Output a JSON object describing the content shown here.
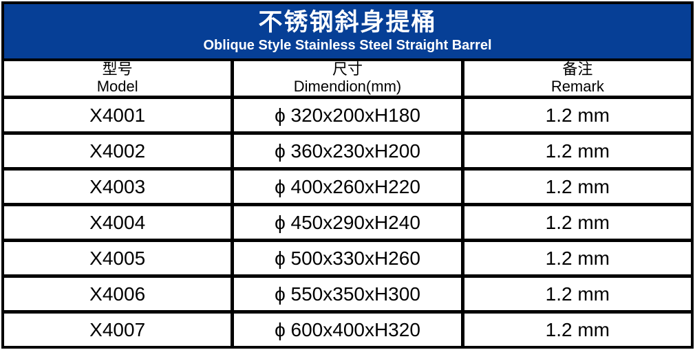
{
  "banner": {
    "title_zh": "不锈钢斜身提桶",
    "title_en": "Oblique Style Stainless Steel Straight Barrel",
    "bg_color": "#063F96",
    "text_color": "#FFFFFF"
  },
  "table": {
    "columns": [
      {
        "label_zh": "型号",
        "label_en": "Model"
      },
      {
        "label_zh": "尺寸",
        "label_en": "Dimendion(mm)"
      },
      {
        "label_zh": "备注",
        "label_en": "Remark"
      }
    ],
    "rows": [
      {
        "model": "X4001",
        "dimension": "ϕ 320x200xH180",
        "remark": "1.2 mm"
      },
      {
        "model": "X4002",
        "dimension": "ϕ 360x230xH200",
        "remark": "1.2 mm"
      },
      {
        "model": "X4003",
        "dimension": "ϕ 400x260xH220",
        "remark": "1.2 mm"
      },
      {
        "model": "X4004",
        "dimension": "ϕ 450x290xH240",
        "remark": "1.2 mm"
      },
      {
        "model": "X4005",
        "dimension": "ϕ 500x330xH260",
        "remark": "1.2 mm"
      },
      {
        "model": "X4006",
        "dimension": "ϕ 550x350xH300",
        "remark": "1.2 mm"
      },
      {
        "model": "X4007",
        "dimension": "ϕ 600x400xH320",
        "remark": "1.2 mm"
      }
    ]
  },
  "colors": {
    "border": "#000000",
    "cell_bg": "#FFFFFF",
    "text": "#000000"
  }
}
